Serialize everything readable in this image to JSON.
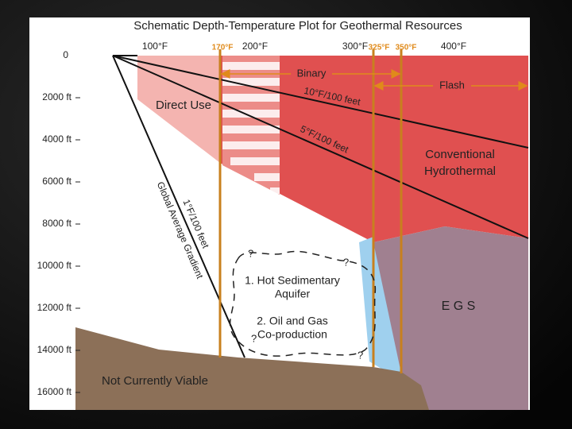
{
  "title": "Schematic Depth-Temperature Plot for Geothermal Resources",
  "temperature_axis": [
    "100°F",
    "170°F",
    "200°F",
    "300°F",
    "325°F",
    "350°F",
    "400°F"
  ],
  "depth_axis": [
    "0",
    "2000 ft",
    "4000 ft",
    "6000 ft",
    "8000 ft",
    "10000 ft",
    "12000 ft",
    "14000 ft",
    "16000 ft"
  ],
  "ranges": {
    "binary": "Binary",
    "flash": "Flash"
  },
  "regions": {
    "direct_use": "Direct Use",
    "conventional": [
      "Conventional",
      "Hydrothermal"
    ],
    "egs": "E G S",
    "sedimentary": [
      "1. Hot Sedimentary",
      "Aquifer"
    ],
    "oil_gas": [
      "2. Oil and Gas",
      "Co-production"
    ],
    "not_viable": "Not Currently Viable",
    "unknown": "?"
  },
  "gradients": {
    "g10": "10°F/100 feet",
    "g5": "5°F/100 feet",
    "g1": "1°F/100 feet",
    "global": "Global Average Gradient"
  }
}
